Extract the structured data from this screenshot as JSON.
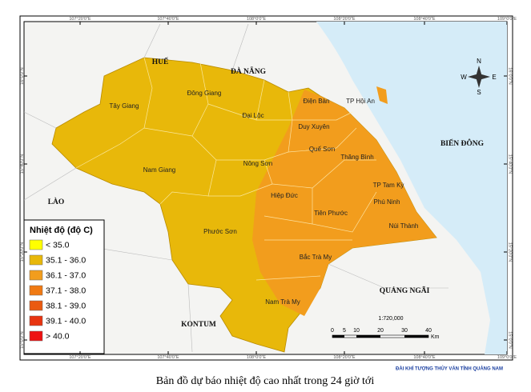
{
  "graticule": {
    "top": [
      "107°20'0\"E",
      "107°40'0\"E",
      "108°0'0\"E",
      "108°20'0\"E",
      "108°40'0\"E",
      "109°0'0\"E"
    ],
    "bottom": [
      "107°20'0\"E",
      "107°40'0\"E",
      "108°0'0\"E",
      "108°20'0\"E",
      "108°40'0\"E",
      "109°0'0\"E"
    ],
    "left": [
      "16°0'0\"N",
      "15°40'0\"N",
      "15°20'0\"N",
      "15°0'0\"N"
    ],
    "right": [
      "16°0'0\"N",
      "15°40'0\"N",
      "15°20'0\"N",
      "15°0'0\"N"
    ]
  },
  "regions": [
    "HUẾ",
    "ĐÀ NẴNG",
    "LÀO",
    "KONTUM",
    "QUẢNG NGÃI",
    "BIỂN ĐÔNG"
  ],
  "districts": [
    "Tây Giang",
    "Đông Giang",
    "Đại Lộc",
    "Điện Bàn",
    "TP Hội An",
    "Duy Xuyên",
    "Quế Sơn",
    "Thăng Bình",
    "Nông Sơn",
    "Nam Giang",
    "Hiệp Đức",
    "TP Tam Kỳ",
    "Phú Ninh",
    "Tiên Phước",
    "Núi Thành",
    "Phước Sơn",
    "Bắc Trà My",
    "Nam Trà My"
  ],
  "legend": {
    "title": "Nhiệt độ (độ C)",
    "items": [
      {
        "label": "< 35.0",
        "color": "#ffff00"
      },
      {
        "label": "35.1 - 36.0",
        "color": "#e8b80a"
      },
      {
        "label": "36.1 - 37.0",
        "color": "#f29d1d"
      },
      {
        "label": "37.1 - 38.0",
        "color": "#f07a12"
      },
      {
        "label": "38.1 - 39.0",
        "color": "#ea5a10"
      },
      {
        "label": "39.1 - 40.0",
        "color": "#e83410"
      },
      {
        "label": "> 40.0",
        "color": "#ee1111"
      }
    ]
  },
  "compass": {
    "n": "N",
    "e": "E",
    "s": "S",
    "w": "W"
  },
  "scale": {
    "ratio": "1:720,000",
    "ticks": [
      0,
      5,
      10,
      20,
      30,
      40
    ],
    "unit": "Km"
  },
  "credit": "ĐÀI KHÍ TƯỢNG THỦY VĂN TỈNH QUẢNG NAM",
  "caption": "Bản đồ dự báo nhiệt độ cao nhất trong 24 giờ tới"
}
